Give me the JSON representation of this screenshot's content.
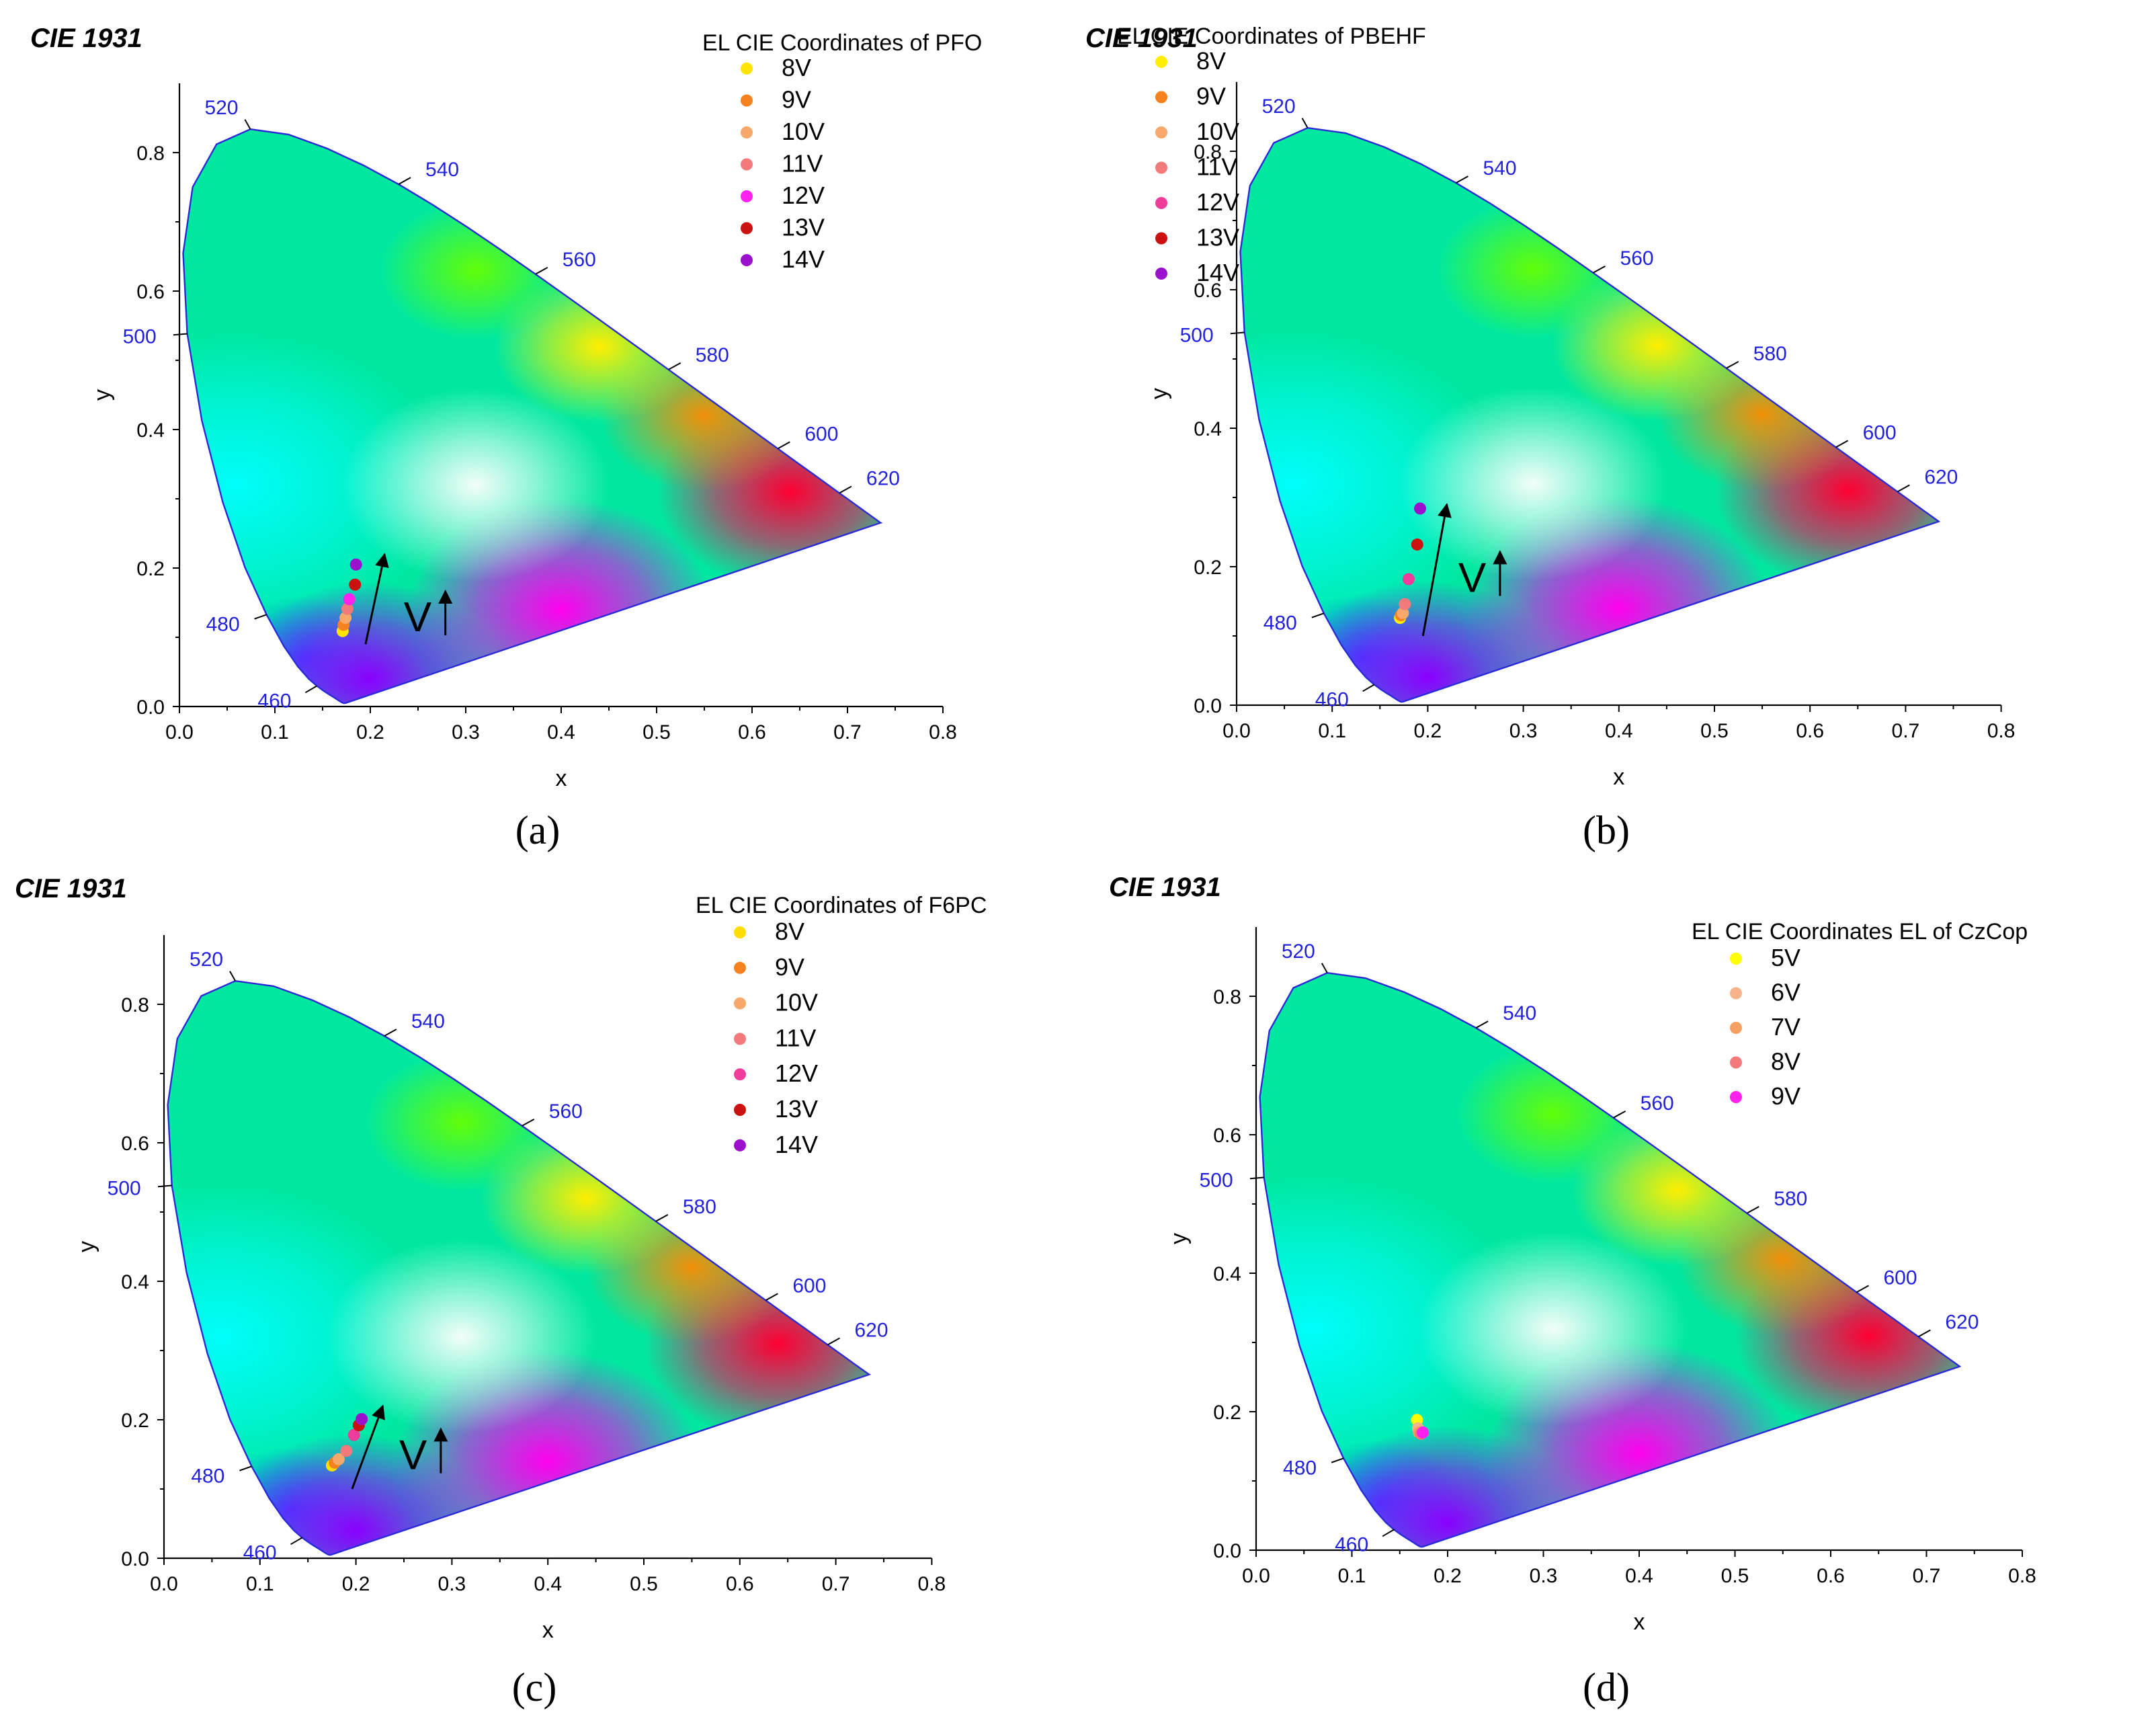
{
  "figure": {
    "cie_title": "CIE 1931",
    "axes": {
      "xlabel": "x",
      "ylabel": "y",
      "xlim": [
        0,
        0.8
      ],
      "ylim": [
        0,
        0.9
      ],
      "x_ticks": [
        "0.0",
        "0.1",
        "0.2",
        "0.3",
        "0.4",
        "0.5",
        "0.6",
        "0.7",
        "0.8"
      ],
      "y_ticks": [
        "0.0",
        "0.2",
        "0.4",
        "0.6",
        "0.8"
      ]
    },
    "wavelength_labels": [
      "460",
      "480",
      "500",
      "520",
      "540",
      "560",
      "580",
      "600",
      "620"
    ],
    "wavelength_color": "#2222dd",
    "voltage_label": "V"
  },
  "chart_data": [
    {
      "type": "scatter",
      "panel": "(a)",
      "title": "CIE 1931",
      "legend_title": "EL CIE Coordinates of PFO",
      "xlabel": "x",
      "ylabel": "y",
      "xlim": [
        0,
        0.8
      ],
      "ylim": [
        0,
        0.9
      ],
      "show_arrow": true,
      "series": [
        {
          "name": "8V",
          "color": "#ffe400",
          "x": 0.171,
          "y": 0.109
        },
        {
          "name": "9V",
          "color": "#f5821f",
          "x": 0.172,
          "y": 0.118
        },
        {
          "name": "10V",
          "color": "#f7a86a",
          "x": 0.174,
          "y": 0.128
        },
        {
          "name": "11V",
          "color": "#f27a7a",
          "x": 0.176,
          "y": 0.141
        },
        {
          "name": "12V",
          "color": "#ff22ee",
          "x": 0.178,
          "y": 0.155
        },
        {
          "name": "13V",
          "color": "#cc1111",
          "x": 0.184,
          "y": 0.176
        },
        {
          "name": "14V",
          "color": "#9a10cc",
          "x": 0.185,
          "y": 0.205
        }
      ]
    },
    {
      "type": "scatter",
      "panel": "(b)",
      "title": "CIE 1931",
      "legend_title": "EL CIE Coordinates of PBEHF",
      "xlabel": "x",
      "ylabel": "y",
      "xlim": [
        0,
        0.8
      ],
      "ylim": [
        0,
        0.9
      ],
      "show_arrow": true,
      "series": [
        {
          "name": "8V",
          "color": "#ffee00",
          "x": 0.171,
          "y": 0.126
        },
        {
          "name": "9V",
          "color": "#f5821f",
          "x": 0.172,
          "y": 0.13
        },
        {
          "name": "10V",
          "color": "#f7a86a",
          "x": 0.174,
          "y": 0.133
        },
        {
          "name": "11V",
          "color": "#f27a7a",
          "x": 0.176,
          "y": 0.146
        },
        {
          "name": "12V",
          "color": "#f03c9a",
          "x": 0.18,
          "y": 0.182
        },
        {
          "name": "13V",
          "color": "#cc1111",
          "x": 0.189,
          "y": 0.232
        },
        {
          "name": "14V",
          "color": "#9a10cc",
          "x": 0.192,
          "y": 0.284
        }
      ]
    },
    {
      "type": "scatter",
      "panel": "(c)",
      "title": "CIE 1931",
      "legend_title": "EL CIE Coordinates of F6PC",
      "xlabel": "x",
      "ylabel": "y",
      "xlim": [
        0,
        0.8
      ],
      "ylim": [
        0,
        0.9
      ],
      "show_arrow": true,
      "series": [
        {
          "name": "8V",
          "color": "#ffdd00",
          "x": 0.175,
          "y": 0.134
        },
        {
          "name": "9V",
          "color": "#f5821f",
          "x": 0.178,
          "y": 0.138
        },
        {
          "name": "10V",
          "color": "#f7a86a",
          "x": 0.182,
          "y": 0.143
        },
        {
          "name": "11V",
          "color": "#f27a7a",
          "x": 0.19,
          "y": 0.155
        },
        {
          "name": "12V",
          "color": "#f03c9a",
          "x": 0.198,
          "y": 0.178
        },
        {
          "name": "13V",
          "color": "#cc1111",
          "x": 0.203,
          "y": 0.192
        },
        {
          "name": "14V",
          "color": "#9a10cc",
          "x": 0.206,
          "y": 0.201
        }
      ]
    },
    {
      "type": "scatter",
      "panel": "(d)",
      "title": "CIE 1931",
      "legend_title": "EL CIE Coordinates EL of CzCop",
      "xlabel": "x",
      "ylabel": "y",
      "xlim": [
        0,
        0.8
      ],
      "ylim": [
        0,
        0.9
      ],
      "show_arrow": false,
      "series": [
        {
          "name": "5V",
          "color": "#ffff00",
          "x": 0.168,
          "y": 0.188
        },
        {
          "name": "6V",
          "color": "#f7b48a",
          "x": 0.169,
          "y": 0.176
        },
        {
          "name": "7V",
          "color": "#f5a060",
          "x": 0.17,
          "y": 0.17
        },
        {
          "name": "8V",
          "color": "#f27a7a",
          "x": 0.172,
          "y": 0.168
        },
        {
          "name": "9V",
          "color": "#ff22ee",
          "x": 0.174,
          "y": 0.17
        }
      ]
    }
  ]
}
